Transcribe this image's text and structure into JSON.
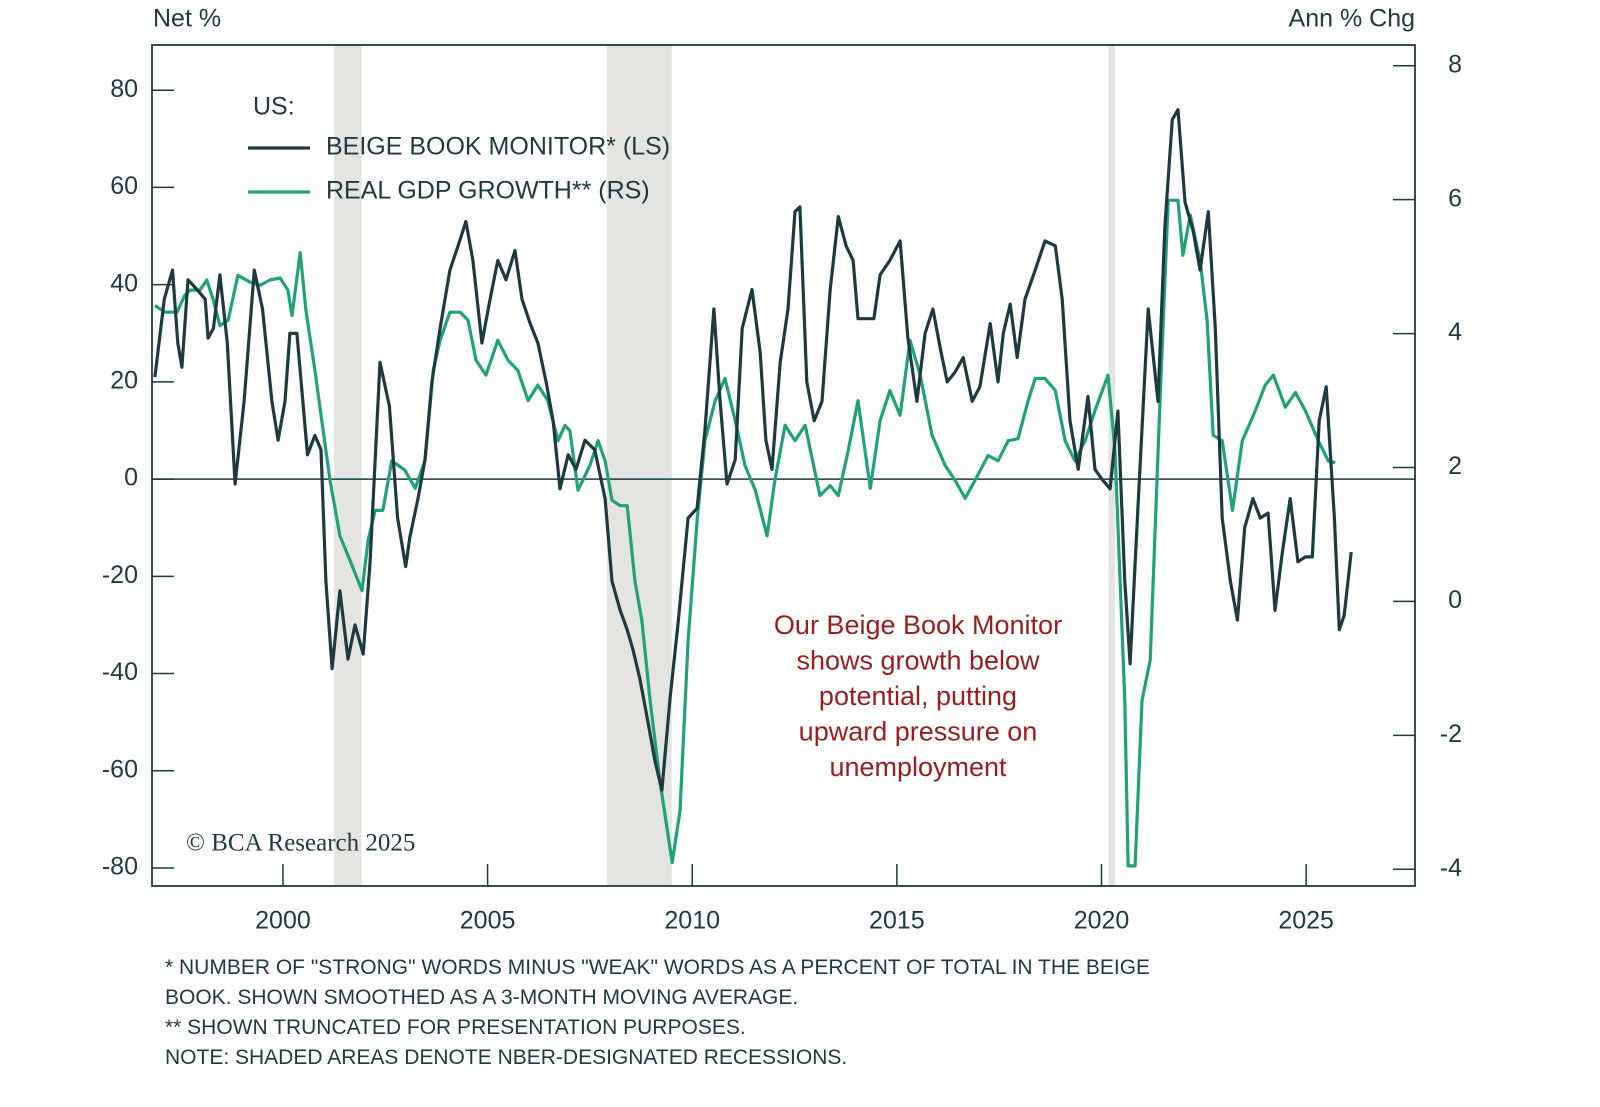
{
  "chart_data": {
    "type": "line",
    "y_axis_title": "Net %",
    "y2_axis_title": "Ann % Chg",
    "legend_title": "US:",
    "legend": "upper left",
    "annotation": [
      "Our Beige Book Monitor",
      "shows growth below",
      "potential, putting",
      "upward pressure on",
      "unemployment"
    ],
    "copyright": "© BCA Research 2025",
    "footnotes": [
      "* NUMBER OF \"STRONG\" WORDS MINUS \"WEAK\" WORDS AS A PERCENT OF TOTAL IN THE BEIGE",
      "BOOK. SHOWN SMOOTHED AS A 3-MONTH MOVING AVERAGE.",
      "** SHOWN TRUNCATED FOR PRESENTATION PURPOSES.",
      "NOTE: SHADED AREAS DENOTE NBER-DESIGNATED RECESSIONS."
    ],
    "xlim": [
      1996.8,
      2027.66
    ],
    "xticks": [
      2000,
      2005,
      2010,
      2015,
      2020,
      2025
    ],
    "ylim": [
      -83.7,
      89.3
    ],
    "yticks": [
      -80,
      -60,
      -40,
      -20,
      0,
      20,
      40,
      60,
      80
    ],
    "y2lim": [
      -4.25,
      8.31
    ],
    "y2ticks": [
      -4,
      -2,
      0,
      2,
      4,
      6,
      8
    ],
    "recessions": [
      [
        2001.25,
        2001.92
      ],
      [
        2007.92,
        2009.5
      ],
      [
        2020.17,
        2020.33
      ]
    ],
    "recession_color": "#e4e4e0",
    "series": [
      {
        "name": "BEIGE BOOK MONITOR* (LS)",
        "color": "#1e3a3f",
        "axis": "y",
        "x": [
          1996.87,
          1997.1,
          1997.3,
          1997.43,
          1997.53,
          1997.68,
          1997.9,
          1998.1,
          1998.17,
          1998.3,
          1998.46,
          1998.64,
          1998.83,
          1999.05,
          1999.3,
          1999.5,
          1999.73,
          1999.88,
          2000.05,
          2000.17,
          2000.34,
          2000.6,
          2000.78,
          2000.93,
          2001.05,
          2001.2,
          2001.39,
          2001.59,
          2001.76,
          2001.96,
          2002.13,
          2002.37,
          2002.6,
          2002.8,
          2003.0,
          2003.1,
          2003.3,
          2003.47,
          2003.64,
          2003.84,
          2004.08,
          2004.28,
          2004.47,
          2004.64,
          2004.86,
          2005.06,
          2005.25,
          2005.45,
          2005.67,
          2005.84,
          2006.04,
          2006.23,
          2006.43,
          2006.6,
          2006.77,
          2006.97,
          2007.16,
          2007.38,
          2007.62,
          2007.87,
          2008.04,
          2008.24,
          2008.41,
          2008.55,
          2008.72,
          2008.92,
          2009.09,
          2009.26,
          2009.46,
          2009.65,
          2009.9,
          2010.12,
          2010.31,
          2010.53,
          2010.68,
          2010.85,
          2011.05,
          2011.22,
          2011.46,
          2011.66,
          2011.8,
          2011.95,
          2012.15,
          2012.34,
          2012.51,
          2012.63,
          2012.8,
          2012.98,
          2013.17,
          2013.37,
          2013.57,
          2013.76,
          2013.93,
          2014.05,
          2014.25,
          2014.44,
          2014.59,
          2014.83,
          2015.08,
          2015.27,
          2015.49,
          2015.69,
          2015.88,
          2016.06,
          2016.23,
          2016.42,
          2016.62,
          2016.84,
          2017.03,
          2017.28,
          2017.47,
          2017.6,
          2017.77,
          2017.94,
          2018.13,
          2018.38,
          2018.62,
          2018.87,
          2019.04,
          2019.23,
          2019.43,
          2019.67,
          2019.84,
          2020.01,
          2020.21,
          2020.4,
          2020.57,
          2020.7,
          2020.89,
          2021.14,
          2021.38,
          2021.55,
          2021.73,
          2021.87,
          2022.04,
          2022.24,
          2022.41,
          2022.61,
          2022.78,
          2022.95,
          2023.15,
          2023.32,
          2023.5,
          2023.7,
          2023.88,
          2024.07,
          2024.24,
          2024.42,
          2024.61,
          2024.8,
          2024.98,
          2025.15,
          2025.32,
          2025.49,
          2025.69,
          2025.81,
          2025.93,
          2026.1
        ],
        "values": [
          21,
          37,
          43,
          28,
          23,
          41,
          39,
          37,
          29,
          31,
          42,
          28,
          -1,
          16,
          43,
          35,
          16,
          8,
          16,
          30,
          30,
          5,
          9,
          6,
          -21,
          -39,
          -23,
          -37,
          -30,
          -36,
          -17,
          24,
          15,
          -8,
          -18,
          -12,
          -4,
          4,
          20,
          31,
          43,
          48,
          53,
          45,
          28,
          37,
          45,
          41,
          47,
          37,
          32,
          28,
          20,
          12,
          -2,
          5,
          2,
          8,
          6,
          -4,
          -21,
          -27,
          -31,
          -35,
          -41,
          -50,
          -58,
          -64,
          -45,
          -30,
          -8,
          -6,
          10,
          35,
          16,
          -1,
          4,
          31,
          39,
          26,
          8,
          2,
          24,
          35,
          55,
          56,
          20,
          12,
          16,
          39,
          54,
          48,
          45,
          33,
          33,
          33,
          42,
          45,
          49,
          29,
          16,
          30,
          35,
          27,
          20,
          22,
          25,
          16,
          19,
          32,
          20,
          30,
          36,
          25,
          37,
          43,
          49,
          48,
          37,
          12,
          2,
          17,
          2,
          0,
          -2,
          14,
          -21,
          -38,
          -6,
          35,
          16,
          52,
          74,
          76,
          57,
          51,
          43,
          55,
          31,
          -8,
          -21,
          -29,
          -10,
          -4,
          -8,
          -7,
          -27,
          -15,
          -4,
          -17,
          -16,
          -16,
          12,
          19,
          -8,
          -31,
          -28,
          -15
        ]
      },
      {
        "name": "REAL GDP GROWTH** (RS)",
        "color": "#1fa27a",
        "axis": "y2",
        "x": [
          1996.87,
          1997.12,
          1997.41,
          1997.6,
          1997.73,
          1997.97,
          1998.14,
          1998.3,
          1998.46,
          1998.66,
          1998.9,
          1999.19,
          1999.44,
          1999.68,
          1999.93,
          2000.12,
          2000.22,
          2000.42,
          2000.56,
          2000.78,
          2000.95,
          2001.15,
          2001.39,
          2001.64,
          2001.93,
          2002.08,
          2002.25,
          2002.44,
          2002.66,
          2002.98,
          2003.23,
          2003.47,
          2003.67,
          2003.84,
          2004.08,
          2004.33,
          2004.52,
          2004.72,
          2004.96,
          2005.25,
          2005.5,
          2005.74,
          2005.99,
          2006.23,
          2006.47,
          2006.72,
          2006.89,
          2007.01,
          2007.21,
          2007.5,
          2007.7,
          2007.87,
          2008.04,
          2008.24,
          2008.41,
          2008.6,
          2008.77,
          2008.97,
          2009.21,
          2009.51,
          2009.7,
          2009.9,
          2010.12,
          2010.31,
          2010.56,
          2010.8,
          2011.05,
          2011.29,
          2011.54,
          2011.83,
          2012.02,
          2012.27,
          2012.51,
          2012.76,
          2013.12,
          2013.37,
          2013.57,
          2013.81,
          2014.05,
          2014.35,
          2014.59,
          2014.83,
          2015.08,
          2015.32,
          2015.57,
          2015.86,
          2016.18,
          2016.42,
          2016.67,
          2016.91,
          2017.23,
          2017.47,
          2017.72,
          2017.96,
          2018.21,
          2018.38,
          2018.62,
          2018.87,
          2019.11,
          2019.35,
          2019.6,
          2019.84,
          2020.16,
          2020.33,
          2020.57,
          2020.65,
          2020.82,
          2020.99,
          2021.19,
          2021.43,
          2021.63,
          2021.87,
          2021.99,
          2022.17,
          2022.41,
          2022.58,
          2022.73,
          2022.95,
          2023.2,
          2023.44,
          2023.76,
          2024.0,
          2024.2,
          2024.49,
          2024.74,
          2024.98,
          2025.3,
          2025.54,
          2025.71
        ],
        "values": [
          4.42,
          4.32,
          4.32,
          4.57,
          4.65,
          4.65,
          4.8,
          4.5,
          4.12,
          4.2,
          4.87,
          4.77,
          4.72,
          4.8,
          4.83,
          4.65,
          4.27,
          5.21,
          4.35,
          3.45,
          2.7,
          1.81,
          0.98,
          0.61,
          0.16,
          0.91,
          1.36,
          1.36,
          2.1,
          1.96,
          1.69,
          2.1,
          3.45,
          3.9,
          4.32,
          4.32,
          4.2,
          3.6,
          3.38,
          3.9,
          3.6,
          3.45,
          3.0,
          3.23,
          3.0,
          2.4,
          2.63,
          2.55,
          1.66,
          2.03,
          2.4,
          2.1,
          1.51,
          1.43,
          1.43,
          0.31,
          -0.29,
          -1.48,
          -2.68,
          -3.9,
          -3.13,
          -0.59,
          1.21,
          2.4,
          3.0,
          3.33,
          2.7,
          2.03,
          1.66,
          0.98,
          1.81,
          2.63,
          2.4,
          2.63,
          1.58,
          1.73,
          1.58,
          2.25,
          3.0,
          1.69,
          2.7,
          3.15,
          2.78,
          3.9,
          3.38,
          2.48,
          2.03,
          1.81,
          1.54,
          1.81,
          2.18,
          2.1,
          2.4,
          2.43,
          3.0,
          3.33,
          3.33,
          3.15,
          2.4,
          2.1,
          2.4,
          2.85,
          3.38,
          2.25,
          -1.48,
          -3.95,
          -3.95,
          -1.48,
          -0.88,
          3.0,
          5.99,
          5.99,
          5.17,
          5.77,
          5.09,
          4.2,
          2.48,
          2.4,
          1.36,
          2.4,
          2.85,
          3.23,
          3.38,
          2.9,
          3.12,
          2.85,
          2.4,
          2.1,
          2.07
        ]
      }
    ]
  }
}
